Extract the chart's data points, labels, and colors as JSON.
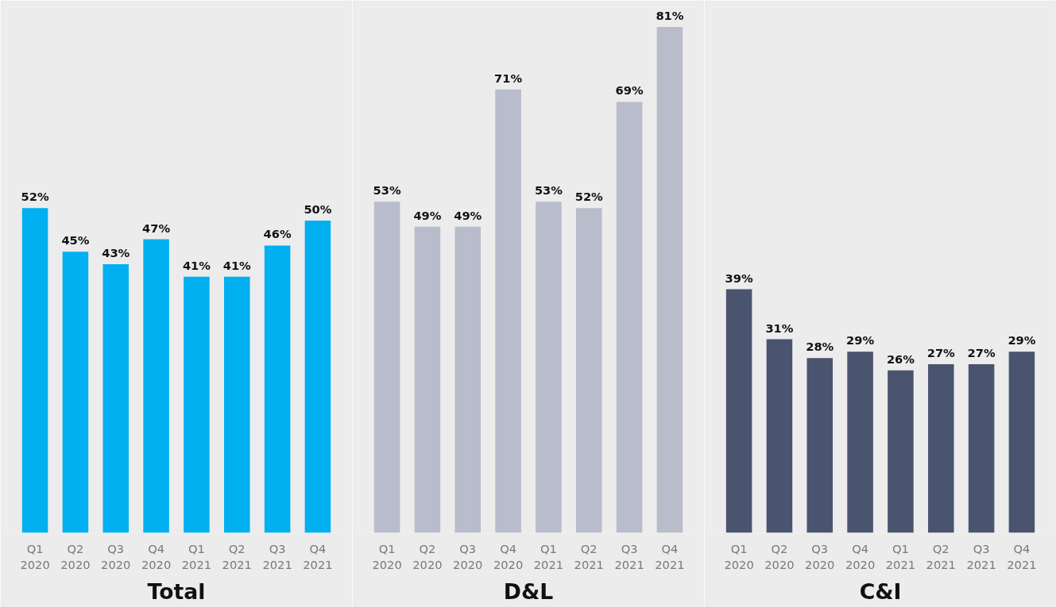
{
  "chart_data": [
    {
      "type": "bar",
      "title": "Total",
      "categories": [
        "Q1\n2020",
        "Q2\n2020",
        "Q3\n2020",
        "Q4\n2020",
        "Q1\n2021",
        "Q2\n2021",
        "Q3\n2021",
        "Q4\n2021"
      ],
      "values": [
        52,
        45,
        43,
        47,
        41,
        41,
        46,
        50
      ],
      "value_labels": [
        "52%",
        "45%",
        "43%",
        "47%",
        "41%",
        "41%",
        "46%",
        "50%"
      ],
      "color": "#00b0f0",
      "grid": false,
      "tick_labels": "x"
    },
    {
      "type": "bar",
      "title": "D&L",
      "categories": [
        "Q1\n2020",
        "Q2\n2020",
        "Q3\n2020",
        "Q4\n2020",
        "Q1\n2021",
        "Q2\n2021",
        "Q3\n2021",
        "Q4\n2021"
      ],
      "values": [
        53,
        49,
        49,
        71,
        53,
        52,
        69,
        81
      ],
      "value_labels": [
        "53%",
        "49%",
        "49%",
        "71%",
        "53%",
        "52%",
        "69%",
        "81%"
      ],
      "color": "#b8bccb",
      "grid": false,
      "tick_labels": "x"
    },
    {
      "type": "bar",
      "title": "C&I",
      "categories": [
        "Q1\n2020",
        "Q2\n2020",
        "Q3\n2020",
        "Q4\n2020",
        "Q1\n2021",
        "Q2\n2021",
        "Q3\n2021",
        "Q4\n2021"
      ],
      "values": [
        39,
        31,
        28,
        29,
        26,
        27,
        27,
        29
      ],
      "value_labels": [
        "39%",
        "31%",
        "28%",
        "29%",
        "26%",
        "27%",
        "27%",
        "29%"
      ],
      "color": "#4a546e",
      "grid": false,
      "tick_labels": "x"
    }
  ]
}
